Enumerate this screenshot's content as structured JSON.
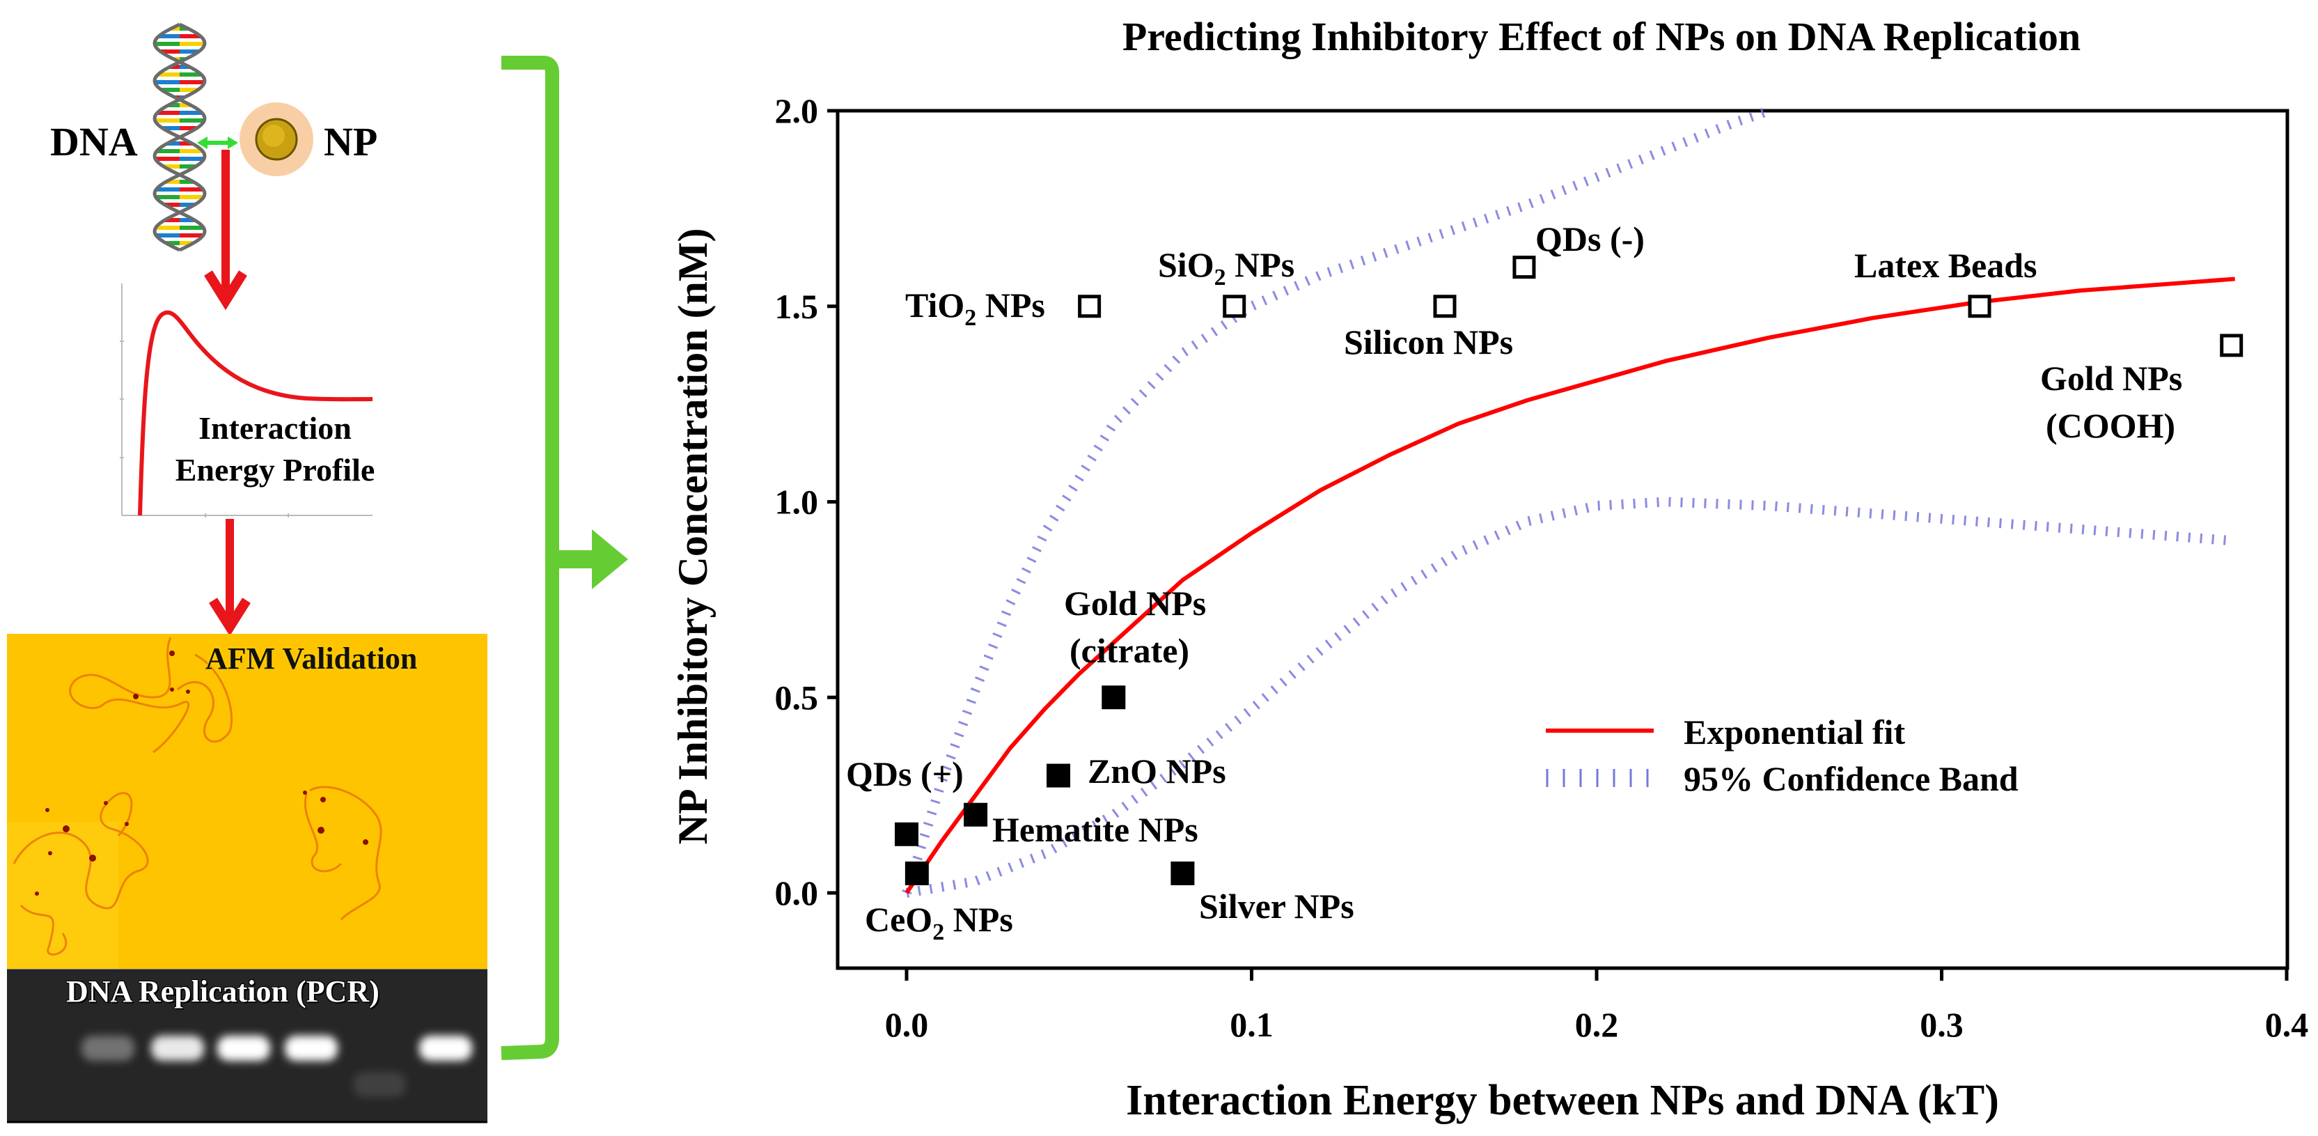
{
  "left_panel": {
    "dna_label": "DNA",
    "np_label": "NP",
    "profile_label_line1": "Interaction",
    "profile_label_line2": "Energy Profile",
    "afm_label": "AFM Validation",
    "pcr_label": "DNA Replication (PCR)",
    "colors": {
      "arrow_red": "#e8161b",
      "bracket_green": "#66cc33",
      "afm_bg": "#ffc400",
      "gel_bg": "#262626"
    },
    "pcr_band_intensity": [
      0.35,
      0.9,
      1.0,
      1.0,
      0.12,
      1.0
    ]
  },
  "chart_data": {
    "type": "scatter",
    "title": "Predicting Inhibitory Effect of NPs on DNA Replication",
    "xlabel": "Interaction Energy between NPs and DNA (kT)",
    "ylabel": "NP Inhibitory Concentration (nM)",
    "xlim": [
      -0.02,
      0.4
    ],
    "ylim": [
      -0.15,
      2.0
    ],
    "xticks": [
      0.0,
      0.1,
      0.2,
      0.3,
      0.4
    ],
    "xtick_labels": [
      "0.0",
      "0.1",
      "0.2",
      "0.3",
      "0.4"
    ],
    "yticks": [
      0.0,
      0.5,
      1.0,
      1.5,
      2.0
    ],
    "ytick_labels": [
      "0.0",
      "0.5",
      "1.0",
      "1.5",
      "2.0"
    ],
    "grid": false,
    "legend_position": "lower-right",
    "legend": [
      {
        "label": "Exponential fit",
        "style": "solid",
        "color": "#ff0000"
      },
      {
        "label": "95% Confidence Band",
        "style": "dotted",
        "color": "#7777dd"
      }
    ],
    "points": [
      {
        "label": "TiO2 NPs",
        "label_main": "TiO",
        "label_sub": "2",
        "label_tail": " NPs",
        "x": 0.053,
        "y": 1.5,
        "filled": false
      },
      {
        "label": "SiO2 NPs",
        "label_main": "SiO",
        "label_sub": "2",
        "label_tail": " NPs",
        "x": 0.095,
        "y": 1.5,
        "filled": false
      },
      {
        "label": "Silicon NPs",
        "x": 0.156,
        "y": 1.5,
        "filled": false
      },
      {
        "label": "QDs (-)",
        "x": 0.179,
        "y": 1.6,
        "filled": false
      },
      {
        "label": "Latex Beads",
        "x": 0.311,
        "y": 1.5,
        "filled": false
      },
      {
        "label": "Gold NPs (COOH)",
        "label_lines": [
          "Gold NPs",
          "(COOH)"
        ],
        "x": 0.384,
        "y": 1.4,
        "filled": false
      },
      {
        "label": "Gold NPs (citrate)",
        "label_lines": [
          "Gold NPs",
          "(citrate)"
        ],
        "x": 0.06,
        "y": 0.5,
        "filled": true
      },
      {
        "label": "ZnO NPs",
        "x": 0.044,
        "y": 0.3,
        "filled": true
      },
      {
        "label": "QDs (+)",
        "x": 0.0,
        "y": 0.15,
        "filled": true
      },
      {
        "label": "Hematite NPs",
        "x": 0.02,
        "y": 0.2,
        "filled": true
      },
      {
        "label": "CeO2 NPs",
        "label_main": "CeO",
        "label_sub": "2",
        "label_tail": " NPs",
        "x": 0.003,
        "y": 0.05,
        "filled": true
      },
      {
        "label": "Silver NPs",
        "x": 0.08,
        "y": 0.05,
        "filled": true
      }
    ],
    "fit_curve": {
      "name": "Exponential fit",
      "x": [
        0.0,
        0.01,
        0.02,
        0.03,
        0.04,
        0.05,
        0.06,
        0.08,
        0.1,
        0.12,
        0.14,
        0.16,
        0.18,
        0.2,
        0.22,
        0.25,
        0.28,
        0.31,
        0.34,
        0.37,
        0.385
      ],
      "y": [
        0.0,
        0.13,
        0.25,
        0.37,
        0.47,
        0.56,
        0.64,
        0.8,
        0.92,
        1.03,
        1.12,
        1.2,
        1.26,
        1.31,
        1.36,
        1.42,
        1.47,
        1.51,
        1.54,
        1.56,
        1.57
      ]
    },
    "upper_band": {
      "name": "95% Confidence Band (upper)",
      "x": [
        0.0,
        0.01,
        0.02,
        0.03,
        0.04,
        0.06,
        0.08,
        0.1,
        0.12,
        0.14,
        0.16,
        0.18,
        0.2,
        0.22,
        0.24,
        0.25
      ],
      "y": [
        0.0,
        0.28,
        0.52,
        0.74,
        0.92,
        1.2,
        1.38,
        1.5,
        1.58,
        1.64,
        1.7,
        1.76,
        1.83,
        1.9,
        1.97,
        2.0
      ]
    },
    "lower_band": {
      "name": "95% Confidence Band (lower)",
      "x": [
        0.0,
        0.02,
        0.04,
        0.06,
        0.08,
        0.1,
        0.12,
        0.14,
        0.16,
        0.18,
        0.2,
        0.22,
        0.25,
        0.28,
        0.31,
        0.34,
        0.37,
        0.385
      ],
      "y": [
        0.0,
        0.03,
        0.1,
        0.2,
        0.33,
        0.47,
        0.62,
        0.76,
        0.87,
        0.95,
        0.99,
        1.0,
        0.99,
        0.97,
        0.95,
        0.93,
        0.91,
        0.9
      ]
    }
  }
}
